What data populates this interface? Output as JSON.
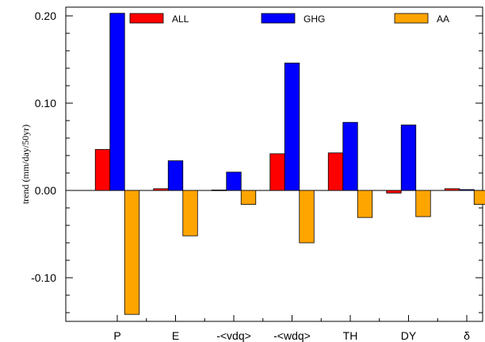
{
  "chart_data": {
    "type": "bar",
    "title": "",
    "xlabel": "",
    "ylabel": "trend (mm/day/50yr)",
    "ylim": [
      -0.15,
      0.21
    ],
    "yticks": [
      0.2,
      0.1,
      0.0,
      -0.1
    ],
    "ytick_labels": [
      "0.20",
      "0.10",
      "0.00",
      "-0.10"
    ],
    "grid": false,
    "legend_position": "top",
    "categories": [
      "P",
      "E",
      "-<vdq>",
      "-<wdq>",
      "TH",
      "DY",
      "δ"
    ],
    "series": [
      {
        "name": "ALL",
        "color": "#ff0000",
        "values": [
          0.047,
          0.002,
          0.0005,
          0.042,
          0.043,
          -0.003,
          0.002
        ]
      },
      {
        "name": "GHG",
        "color": "#0000ff",
        "values": [
          0.203,
          0.034,
          0.021,
          0.146,
          0.078,
          0.075,
          0.001
        ]
      },
      {
        "name": "AA",
        "color": "#ffa500",
        "values": [
          -0.142,
          -0.052,
          -0.016,
          -0.06,
          -0.031,
          -0.03,
          -0.016
        ]
      }
    ]
  }
}
